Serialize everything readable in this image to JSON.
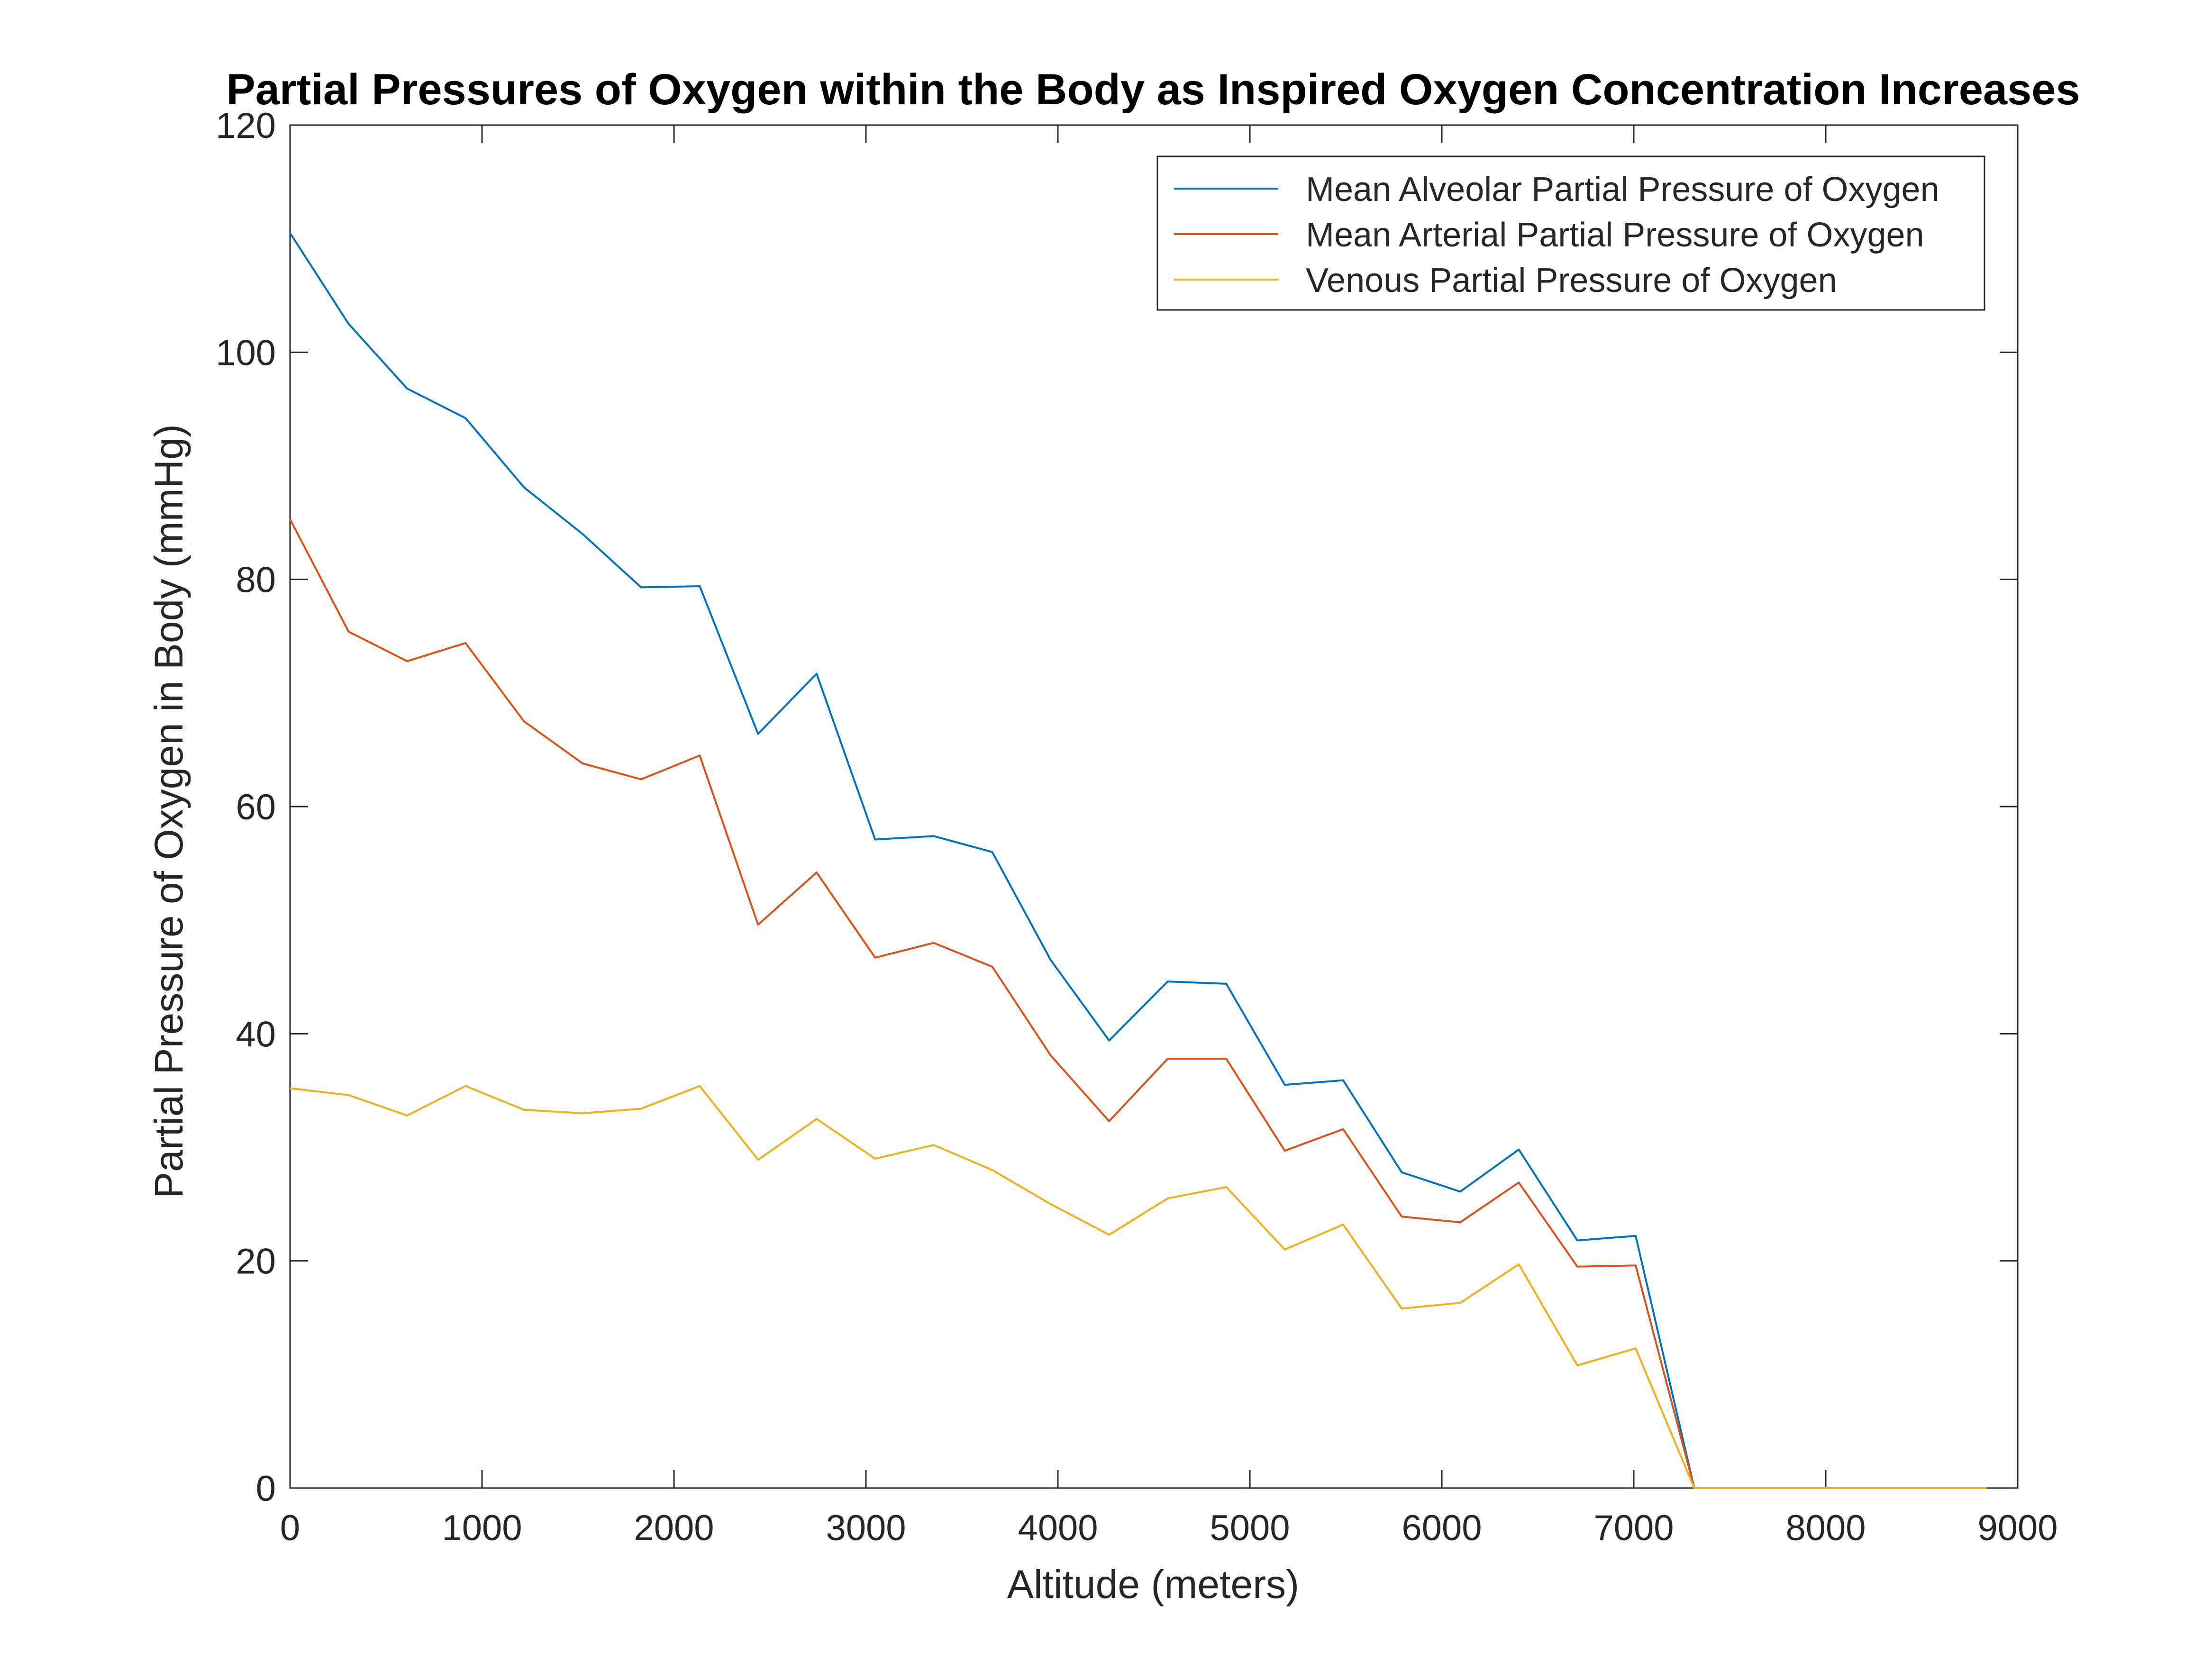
{
  "chart_data": {
    "type": "line",
    "title": "Partial Pressures of Oxygen within the Body as Inspired Oxygen Concentration Increases",
    "xlabel": "Altitude (meters)",
    "ylabel": "Partial Pressure of Oxygen in Body (mmHg)",
    "xlim": [
      0,
      9000
    ],
    "ylim": [
      0,
      120
    ],
    "xticks": [
      0,
      1000,
      2000,
      3000,
      4000,
      5000,
      6000,
      7000,
      8000,
      9000
    ],
    "yticks": [
      0,
      20,
      40,
      60,
      80,
      100,
      120
    ],
    "grid": false,
    "legend_position": "top-right",
    "x": [
      0,
      305,
      610,
      914,
      1219,
      1524,
      1829,
      2134,
      2438,
      2743,
      3048,
      3353,
      3658,
      3962,
      4267,
      4572,
      4877,
      5182,
      5486,
      5791,
      6096,
      6401,
      6706,
      7010,
      7315,
      7620,
      7925,
      8230,
      8534,
      8839
    ],
    "series": [
      {
        "name": "Mean Alveolar Partial Pressure of Oxygen",
        "color": "#0072BD",
        "values": [
          110.5,
          102.5,
          96.8,
          94.2,
          88.1,
          84.0,
          79.3,
          79.4,
          66.4,
          71.7,
          57.1,
          57.4,
          56.0,
          46.5,
          39.4,
          44.6,
          44.4,
          35.5,
          35.9,
          27.8,
          26.1,
          29.8,
          21.8,
          22.2,
          0,
          0,
          0,
          0,
          0,
          0
        ]
      },
      {
        "name": "Mean Arterial Partial Pressure of Oxygen",
        "color": "#D95319",
        "values": [
          85.3,
          75.4,
          72.8,
          74.4,
          67.5,
          63.8,
          62.4,
          64.5,
          49.6,
          54.2,
          46.7,
          48.0,
          45.9,
          38.1,
          32.3,
          37.8,
          37.8,
          29.7,
          31.6,
          23.9,
          23.4,
          26.9,
          19.5,
          19.6,
          0,
          0,
          0,
          0,
          0,
          0
        ]
      },
      {
        "name": "Venous Partial Pressure of Oxygen",
        "color": "#EDB120",
        "values": [
          35.2,
          34.6,
          32.8,
          35.4,
          33.3,
          33.0,
          33.4,
          35.4,
          28.9,
          32.5,
          29.0,
          30.2,
          28.0,
          25.0,
          22.3,
          25.5,
          26.5,
          21.0,
          23.2,
          15.8,
          16.3,
          19.7,
          10.8,
          12.3,
          0,
          0,
          0,
          0,
          0,
          0
        ]
      }
    ]
  }
}
